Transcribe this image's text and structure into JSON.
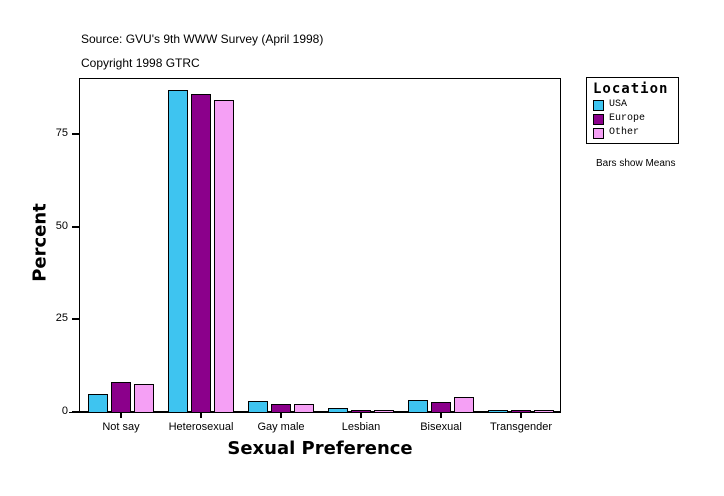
{
  "header": {
    "source": "Source: GVU's 9th WWW Survey (April 1998)",
    "copyright": "Copyright 1998 GTRC"
  },
  "legend": {
    "title": "Location",
    "items": [
      {
        "label": "USA",
        "color": "#3ec4f0"
      },
      {
        "label": "Europe",
        "color": "#8b008b"
      },
      {
        "label": "Other",
        "color": "#f5a0f5"
      }
    ]
  },
  "note": "Bars show Means",
  "chart_data": {
    "type": "bar",
    "title": "",
    "xlabel": "Sexual Preference",
    "ylabel": "Percent",
    "ylim": [
      0,
      90
    ],
    "yticks": [
      0,
      25,
      50,
      75
    ],
    "grid": false,
    "legend_position": "right",
    "categories": [
      "Not say",
      "Heterosexual",
      "Gay male",
      "Lesbian",
      "Bisexual",
      "Transgender"
    ],
    "series": [
      {
        "name": "USA",
        "color": "#3ec4f0",
        "values": [
          4.9,
          86.9,
          3.0,
          1.1,
          3.2,
          0.1
        ]
      },
      {
        "name": "Europe",
        "color": "#8b008b",
        "values": [
          8.1,
          85.8,
          2.2,
          0.6,
          2.7,
          0.1
        ]
      },
      {
        "name": "Other",
        "color": "#f5a0f5",
        "values": [
          7.6,
          84.2,
          2.2,
          0.4,
          4.0,
          0.6
        ]
      }
    ]
  }
}
